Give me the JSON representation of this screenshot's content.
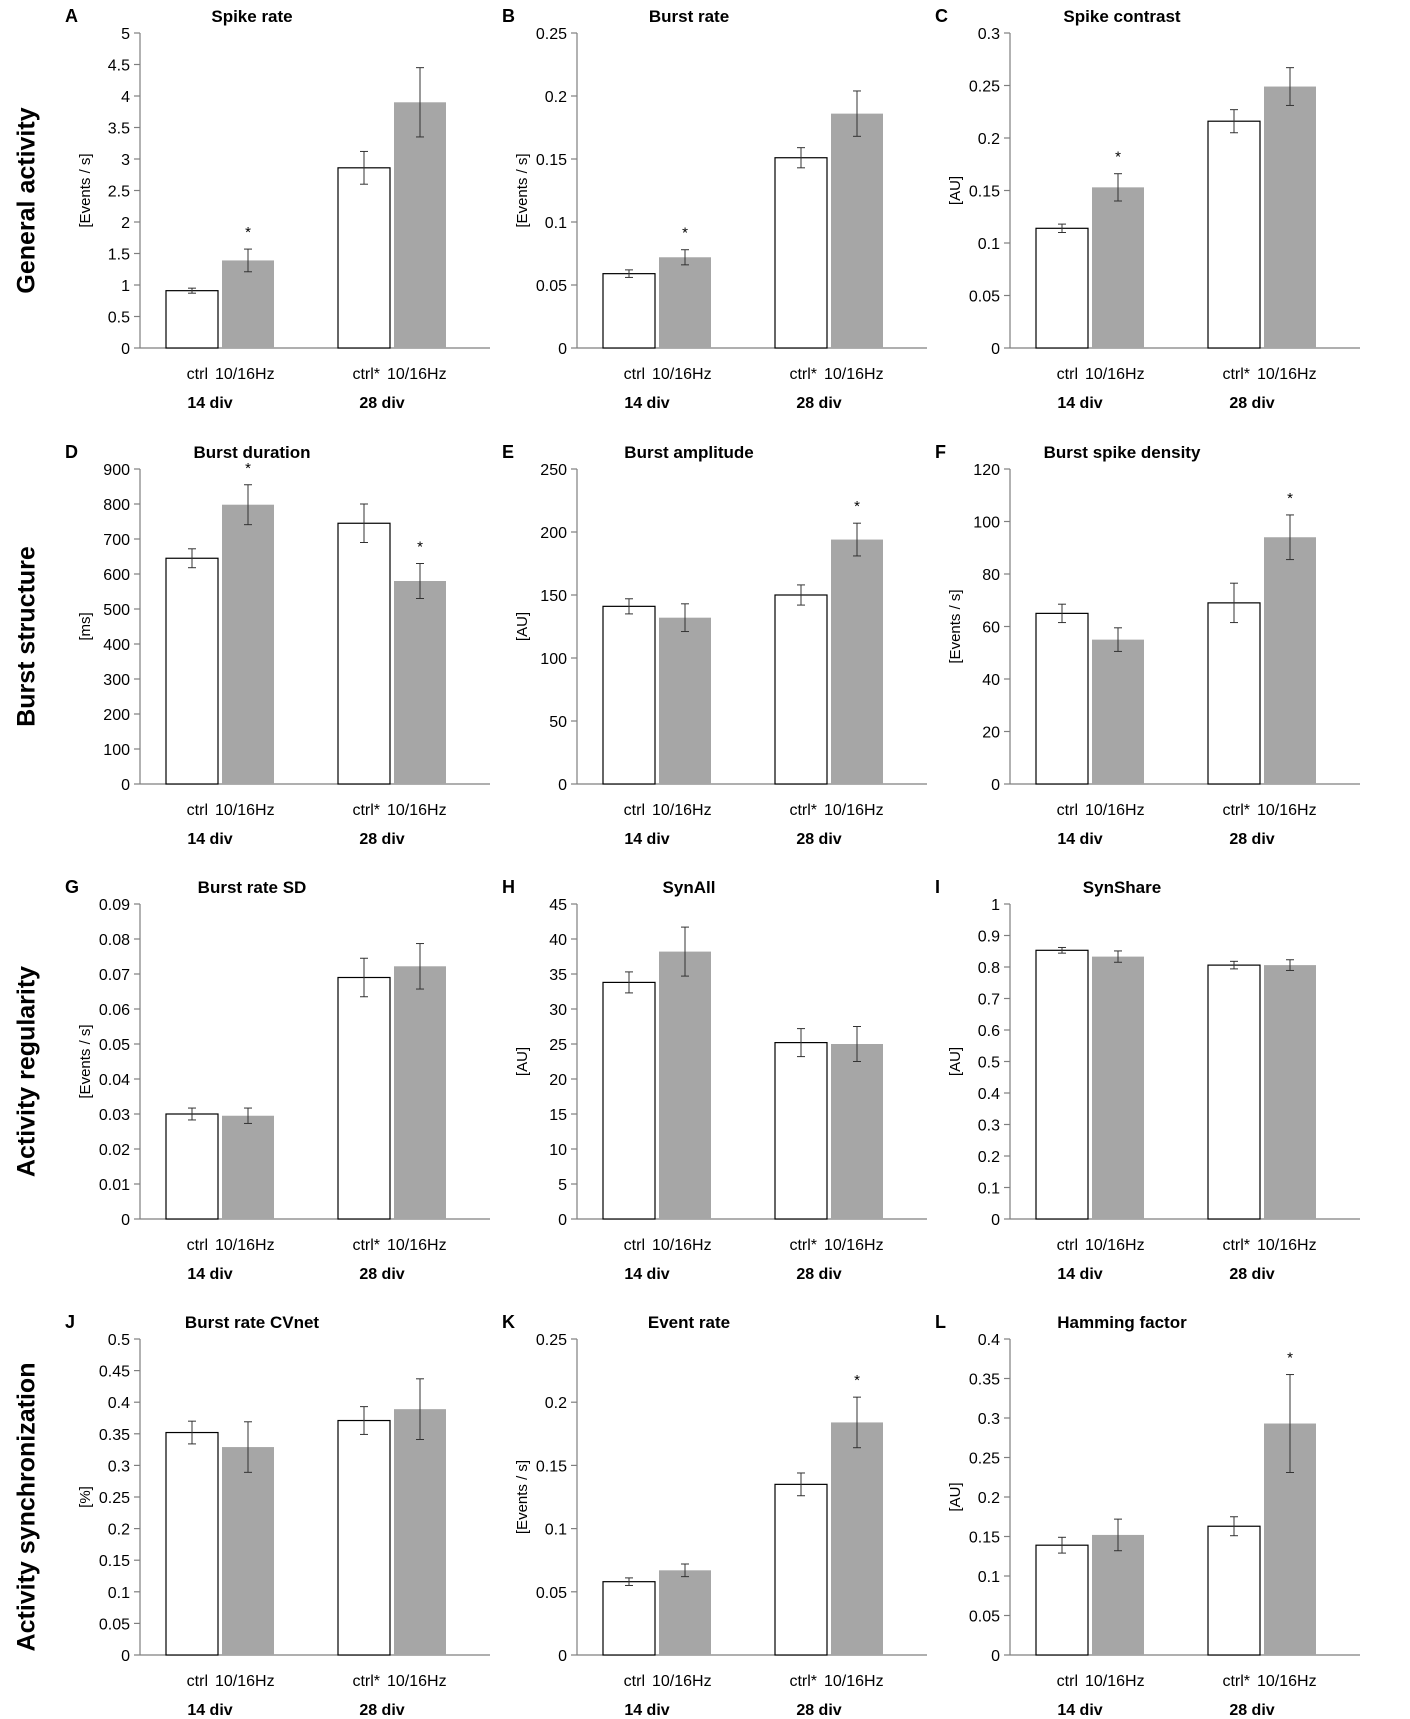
{
  "rows": [
    {
      "label": "General activity"
    },
    {
      "label": "Burst structure"
    },
    {
      "label": "Activity regularity"
    },
    {
      "label": "Activity synchronization"
    }
  ],
  "colors": {
    "ctrl_fill": "#ffffff",
    "stim_fill": "#a6a6a6",
    "axis": "#7f7f7f",
    "bar_edge": "#000000"
  },
  "chart_data": [
    {
      "letter": "A",
      "type": "bar",
      "title": "Spike rate",
      "ylabel": "[Events / s]",
      "ylim": [
        0,
        5
      ],
      "yticks": [
        "0",
        "0.5",
        "1",
        "1.5",
        "2",
        "2.5",
        "3",
        "3.5",
        "4",
        "4.5",
        "5"
      ],
      "groups": [
        "14 div",
        "28 div"
      ],
      "categories": [
        [
          "ctrl",
          "10/16Hz"
        ],
        [
          "ctrl*",
          "10/16Hz"
        ]
      ],
      "series": [
        {
          "name": "ctrl",
          "values": [
            0.91,
            2.86
          ],
          "errors": [
            0.04,
            0.26
          ]
        },
        {
          "name": "10/16Hz",
          "values": [
            1.39,
            3.9
          ],
          "errors": [
            0.18,
            0.55
          ]
        }
      ],
      "significance": [
        [
          false,
          true
        ],
        [
          false,
          false
        ]
      ]
    },
    {
      "letter": "B",
      "type": "bar",
      "title": "Burst rate",
      "ylabel": "[Events / s]",
      "ylim": [
        0,
        0.25
      ],
      "yticks": [
        "0",
        "0.05",
        "0.1",
        "0.15",
        "0.2",
        "0.25"
      ],
      "groups": [
        "14 div",
        "28 div"
      ],
      "categories": [
        [
          "ctrl",
          "10/16Hz"
        ],
        [
          "ctrl*",
          "10/16Hz"
        ]
      ],
      "series": [
        {
          "name": "ctrl",
          "values": [
            0.059,
            0.151
          ],
          "errors": [
            0.003,
            0.008
          ]
        },
        {
          "name": "10/16Hz",
          "values": [
            0.072,
            0.186
          ],
          "errors": [
            0.006,
            0.018
          ]
        }
      ],
      "significance": [
        [
          false,
          true
        ],
        [
          false,
          false
        ]
      ]
    },
    {
      "letter": "C",
      "type": "bar",
      "title": "Spike contrast",
      "ylabel": "[AU]",
      "ylim": [
        0,
        0.3
      ],
      "yticks": [
        "0",
        "0.05",
        "0.1",
        "0.15",
        "0.2",
        "0.25",
        "0.3"
      ],
      "groups": [
        "14 div",
        "28 div"
      ],
      "categories": [
        [
          "ctrl",
          "10/16Hz"
        ],
        [
          "ctrl*",
          "10/16Hz"
        ]
      ],
      "series": [
        {
          "name": "ctrl",
          "values": [
            0.114,
            0.216
          ],
          "errors": [
            0.004,
            0.011
          ]
        },
        {
          "name": "10/16Hz",
          "values": [
            0.153,
            0.249
          ],
          "errors": [
            0.013,
            0.018
          ]
        }
      ],
      "significance": [
        [
          false,
          true
        ],
        [
          false,
          false
        ]
      ]
    },
    {
      "letter": "D",
      "type": "bar",
      "title": "Burst duration",
      "ylabel": "[ms]",
      "ylim": [
        0,
        900
      ],
      "yticks": [
        "0",
        "100",
        "200",
        "300",
        "400",
        "500",
        "600",
        "700",
        "800",
        "900"
      ],
      "groups": [
        "14 div",
        "28 div"
      ],
      "categories": [
        [
          "ctrl",
          "10/16Hz"
        ],
        [
          "ctrl*",
          "10/16Hz"
        ]
      ],
      "series": [
        {
          "name": "ctrl",
          "values": [
            645,
            745
          ],
          "errors": [
            27,
            55
          ]
        },
        {
          "name": "10/16Hz",
          "values": [
            798,
            580
          ],
          "errors": [
            57,
            50
          ]
        }
      ],
      "significance": [
        [
          false,
          true
        ],
        [
          false,
          true
        ]
      ]
    },
    {
      "letter": "E",
      "type": "bar",
      "title": "Burst amplitude",
      "ylabel": "[AU]",
      "ylim": [
        0,
        250
      ],
      "yticks": [
        "0",
        "50",
        "100",
        "150",
        "200",
        "250"
      ],
      "groups": [
        "14 div",
        "28 div"
      ],
      "categories": [
        [
          "ctrl",
          "10/16Hz"
        ],
        [
          "ctrl*",
          "10/16Hz"
        ]
      ],
      "series": [
        {
          "name": "ctrl",
          "values": [
            141,
            150
          ],
          "errors": [
            6,
            8
          ]
        },
        {
          "name": "10/16Hz",
          "values": [
            132,
            194
          ],
          "errors": [
            11,
            13
          ]
        }
      ],
      "significance": [
        [
          false,
          false
        ],
        [
          false,
          true
        ]
      ]
    },
    {
      "letter": "F",
      "type": "bar",
      "title": "Burst spike density",
      "ylabel": "[Events / s]",
      "ylim": [
        0,
        120
      ],
      "yticks": [
        "0",
        "20",
        "40",
        "60",
        "80",
        "100",
        "120"
      ],
      "groups": [
        "14 div",
        "28 div"
      ],
      "categories": [
        [
          "ctrl",
          "10/16Hz"
        ],
        [
          "ctrl*",
          "10/16Hz"
        ]
      ],
      "series": [
        {
          "name": "ctrl",
          "values": [
            65,
            69
          ],
          "errors": [
            3.5,
            7.5
          ]
        },
        {
          "name": "10/16Hz",
          "values": [
            55,
            94
          ],
          "errors": [
            4.5,
            8.5
          ]
        }
      ],
      "significance": [
        [
          false,
          false
        ],
        [
          false,
          true
        ]
      ]
    },
    {
      "letter": "G",
      "type": "bar",
      "title": "Burst rate SD",
      "ylabel": "[Events / s]",
      "ylim": [
        0,
        0.09
      ],
      "yticks": [
        "0",
        "0.01",
        "0.02",
        "0.03",
        "0.04",
        "0.05",
        "0.06",
        "0.07",
        "0.08",
        "0.09"
      ],
      "groups": [
        "14 div",
        "28 div"
      ],
      "categories": [
        [
          "ctrl",
          "10/16Hz"
        ],
        [
          "ctrl*",
          "10/16Hz"
        ]
      ],
      "series": [
        {
          "name": "ctrl",
          "values": [
            0.03,
            0.069
          ],
          "errors": [
            0.0017,
            0.0055
          ]
        },
        {
          "name": "10/16Hz",
          "values": [
            0.0295,
            0.0722
          ],
          "errors": [
            0.0022,
            0.0065
          ]
        }
      ],
      "significance": [
        [
          false,
          false
        ],
        [
          false,
          false
        ]
      ]
    },
    {
      "letter": "H",
      "type": "bar",
      "title": "SynAll",
      "ylabel": "[AU]",
      "ylim": [
        0,
        45
      ],
      "yticks": [
        "0",
        "5",
        "10",
        "15",
        "20",
        "25",
        "30",
        "35",
        "40",
        "45"
      ],
      "groups": [
        "14 div",
        "28 div"
      ],
      "categories": [
        [
          "ctrl",
          "10/16Hz"
        ],
        [
          "ctrl*",
          "10/16Hz"
        ]
      ],
      "series": [
        {
          "name": "ctrl",
          "values": [
            33.8,
            25.2
          ],
          "errors": [
            1.5,
            2.0
          ]
        },
        {
          "name": "10/16Hz",
          "values": [
            38.2,
            25.0
          ],
          "errors": [
            3.5,
            2.5
          ]
        }
      ],
      "significance": [
        [
          false,
          false
        ],
        [
          false,
          false
        ]
      ]
    },
    {
      "letter": "I",
      "type": "bar",
      "title": "SynShare",
      "ylabel": "[AU]",
      "ylim": [
        0,
        1
      ],
      "yticks": [
        "0",
        "0.1",
        "0.2",
        "0.3",
        "0.4",
        "0.5",
        "0.6",
        "0.7",
        "0.8",
        "0.9",
        "1"
      ],
      "groups": [
        "14 div",
        "28 div"
      ],
      "categories": [
        [
          "ctrl",
          "10/16Hz"
        ],
        [
          "ctrl*",
          "10/16Hz"
        ]
      ],
      "series": [
        {
          "name": "ctrl",
          "values": [
            0.853,
            0.806
          ],
          "errors": [
            0.009,
            0.012
          ]
        },
        {
          "name": "10/16Hz",
          "values": [
            0.833,
            0.806
          ],
          "errors": [
            0.018,
            0.017
          ]
        }
      ],
      "significance": [
        [
          false,
          false
        ],
        [
          false,
          false
        ]
      ]
    },
    {
      "letter": "J",
      "type": "bar",
      "title": "Burst rate CVnet",
      "ylabel": "[%]",
      "ylim": [
        0,
        0.5
      ],
      "yticks": [
        "0",
        "0.05",
        "0.1",
        "0.15",
        "0.2",
        "0.25",
        "0.3",
        "0.35",
        "0.4",
        "0.45",
        "0.5"
      ],
      "groups": [
        "14 div",
        "28 div"
      ],
      "categories": [
        [
          "ctrl",
          "10/16Hz"
        ],
        [
          "ctrl*",
          "10/16Hz"
        ]
      ],
      "series": [
        {
          "name": "ctrl",
          "values": [
            0.352,
            0.371
          ],
          "errors": [
            0.018,
            0.022
          ]
        },
        {
          "name": "10/16Hz",
          "values": [
            0.329,
            0.389
          ],
          "errors": [
            0.04,
            0.048
          ]
        }
      ],
      "significance": [
        [
          false,
          false
        ],
        [
          false,
          false
        ]
      ]
    },
    {
      "letter": "K",
      "type": "bar",
      "title": "Event rate",
      "ylabel": "[Events / s]",
      "ylim": [
        0,
        0.25
      ],
      "yticks": [
        "0",
        "0.05",
        "0.1",
        "0.15",
        "0.2",
        "0.25"
      ],
      "groups": [
        "14 div",
        "28 div"
      ],
      "categories": [
        [
          "ctrl",
          "10/16Hz"
        ],
        [
          "ctrl*",
          "10/16Hz"
        ]
      ],
      "series": [
        {
          "name": "ctrl",
          "values": [
            0.058,
            0.135
          ],
          "errors": [
            0.003,
            0.009
          ]
        },
        {
          "name": "10/16Hz",
          "values": [
            0.067,
            0.184
          ],
          "errors": [
            0.005,
            0.02
          ]
        }
      ],
      "significance": [
        [
          false,
          false
        ],
        [
          false,
          true
        ]
      ]
    },
    {
      "letter": "L",
      "type": "bar",
      "title": "Hamming factor",
      "ylabel": "[AU]",
      "ylim": [
        0,
        0.4
      ],
      "yticks": [
        "0",
        "0.05",
        "0.1",
        "0.15",
        "0.2",
        "0.25",
        "0.3",
        "0.35",
        "0.4"
      ],
      "groups": [
        "14 div",
        "28 div"
      ],
      "categories": [
        [
          "ctrl",
          "10/16Hz"
        ],
        [
          "ctrl*",
          "10/16Hz"
        ]
      ],
      "series": [
        {
          "name": "ctrl",
          "values": [
            0.139,
            0.163
          ],
          "errors": [
            0.01,
            0.012
          ]
        },
        {
          "name": "10/16Hz",
          "values": [
            0.152,
            0.293
          ],
          "errors": [
            0.02,
            0.062
          ]
        }
      ],
      "significance": [
        [
          false,
          false
        ],
        [
          false,
          true
        ]
      ]
    }
  ]
}
